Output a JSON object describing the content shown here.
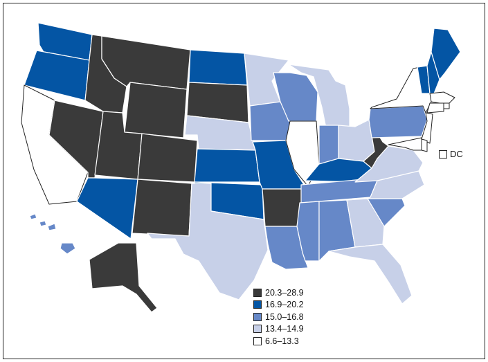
{
  "colors": {
    "20.3–28.9": "#3a3a3a",
    "16.9–20.2": "#0455a4",
    "15.0–16.8": "#6688c8",
    "13.4–14.9": "#c7d0e8",
    "6.6–13.3": "#ffffff"
  },
  "legend": [
    {
      "label": "20.3–28.9",
      "color": "#3a3a3a"
    },
    {
      "label": "16.9–20.2",
      "color": "#0455a4"
    },
    {
      "label": "15.0–16.8",
      "color": "#6688c8"
    },
    {
      "label": "13.4–14.9",
      "color": "#c7d0e8"
    },
    {
      "label": "6.6–13.3",
      "color": "#ffffff"
    }
  ],
  "dc": {
    "label": "DC",
    "range": "6.6–13.3"
  },
  "states": {
    "WA": "16.9–20.2",
    "OR": "16.9–20.2",
    "CA": "6.6–13.3",
    "NV": "20.3–28.9",
    "ID": "20.3–28.9",
    "MT": "20.3–28.9",
    "WY": "20.3–28.9",
    "UT": "20.3–28.9",
    "CO": "20.3–28.9",
    "AZ": "16.9–20.2",
    "NM": "20.3–28.9",
    "ND": "16.9–20.2",
    "SD": "20.3–28.9",
    "NE": "13.4–14.9",
    "KS": "16.9–20.2",
    "OK": "16.9–20.2",
    "TX": "13.4–14.9",
    "MN": "13.4–14.9",
    "IA": "15.0–16.8",
    "MO": "16.9–20.2",
    "AR": "20.3–28.9",
    "LA": "15.0–16.8",
    "WI": "15.0–16.8",
    "IL": "6.6–13.3",
    "MI": "13.4–14.9",
    "IN": "15.0–16.8",
    "OH": "13.4–14.9",
    "KY": "16.9–20.2",
    "TN": "15.0–16.8",
    "MS": "15.0–16.8",
    "AL": "15.0–16.8",
    "GA": "13.4–14.9",
    "FL": "13.4–14.9",
    "SC": "15.0–16.8",
    "NC": "13.4–14.9",
    "VA": "13.4–14.9",
    "WV": "20.3–28.9",
    "PA": "15.0–16.8",
    "NY": "6.6–13.3",
    "VT": "16.9–20.2",
    "NH": "16.9–20.2",
    "ME": "16.9–20.2",
    "MA": "6.6–13.3",
    "RI": "6.6–13.3",
    "CT": "6.6–13.3",
    "NJ": "6.6–13.3",
    "DE": "6.6–13.3",
    "MD": "6.6–13.3",
    "AK": "20.3–28.9",
    "HI": "15.0–16.8"
  }
}
